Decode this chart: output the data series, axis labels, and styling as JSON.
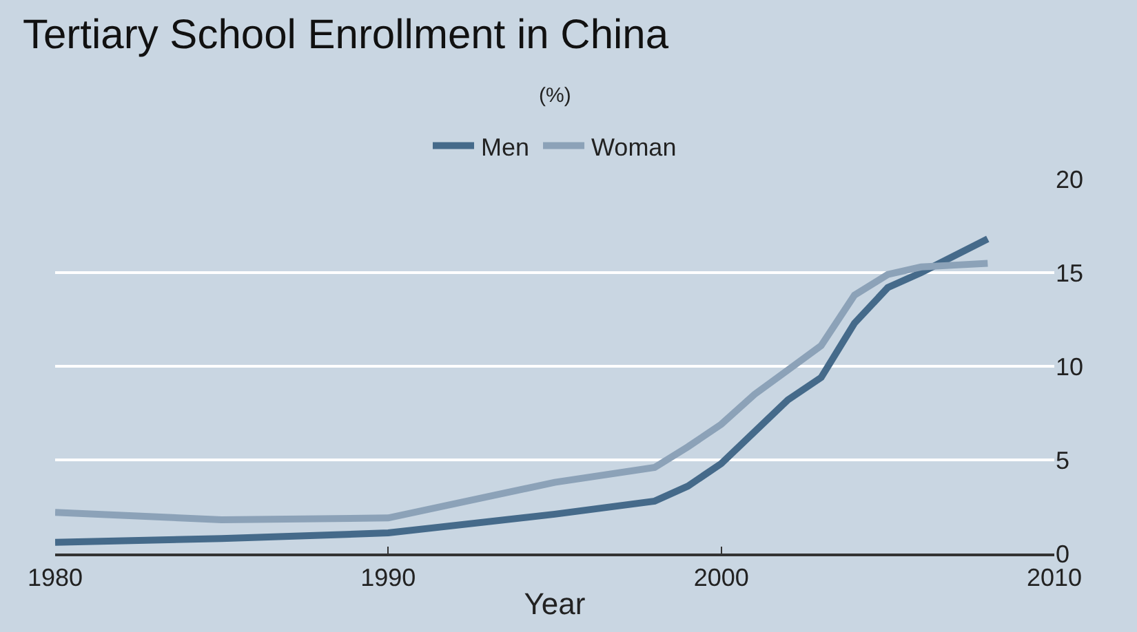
{
  "chart_data": {
    "type": "line",
    "title": "Tertiary School Enrollment in China",
    "subtitle": "(%)",
    "xlabel": "Year",
    "x": [
      1980,
      1985,
      1990,
      1995,
      1998,
      1999,
      2000,
      2001,
      2002,
      2003,
      2004,
      2005,
      2006,
      2007,
      2008
    ],
    "series": [
      {
        "name": "Men",
        "color": "#456a8a",
        "values": [
          0.6,
          0.8,
          1.1,
          2.1,
          2.8,
          3.6,
          4.8,
          6.5,
          8.2,
          9.4,
          12.3,
          14.2,
          15.0,
          15.9,
          16.8
        ]
      },
      {
        "name": "Woman",
        "color": "#8ca2b8",
        "values": [
          2.2,
          1.8,
          1.9,
          3.8,
          4.6,
          5.7,
          6.9,
          8.5,
          9.8,
          11.1,
          13.8,
          14.9,
          15.3,
          15.4,
          15.5
        ]
      }
    ],
    "xlim": [
      1980,
      2010
    ],
    "xticks": [
      1980,
      1990,
      2000,
      2010
    ],
    "ylim": [
      0,
      20
    ],
    "yticks": [
      0,
      5,
      10,
      15,
      20
    ],
    "grid": "y",
    "legend": "top",
    "marker": "none",
    "line_style": "solid"
  }
}
